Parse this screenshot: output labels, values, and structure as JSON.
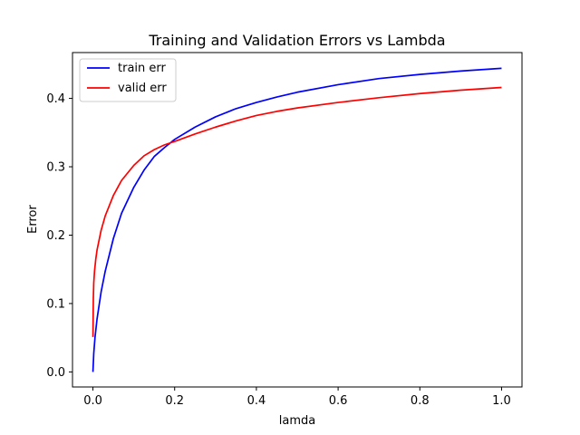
{
  "chart_data": {
    "type": "line",
    "title": "Training and Validation Errors vs Lambda",
    "xlabel": "lamda",
    "ylabel": "Error",
    "xlim": [
      -0.05,
      1.05
    ],
    "ylim": [
      -0.022,
      0.467
    ],
    "xticks": [
      0.0,
      0.2,
      0.4,
      0.6,
      0.8,
      1.0
    ],
    "xtick_labels": [
      "0.0",
      "0.2",
      "0.4",
      "0.6",
      "0.8",
      "1.0"
    ],
    "yticks": [
      0.0,
      0.1,
      0.2,
      0.3,
      0.4
    ],
    "ytick_labels": [
      "0.0",
      "0.1",
      "0.2",
      "0.3",
      "0.4"
    ],
    "grid": false,
    "legend_position": "top-left",
    "series": [
      {
        "name": "train err",
        "color": "#0000ff",
        "x": [
          0.0,
          0.002,
          0.005,
          0.01,
          0.02,
          0.03,
          0.05,
          0.07,
          0.1,
          0.125,
          0.15,
          0.175,
          0.2,
          0.25,
          0.3,
          0.35,
          0.4,
          0.45,
          0.5,
          0.6,
          0.7,
          0.8,
          0.9,
          1.0
        ],
        "values": [
          0.0,
          0.027,
          0.05,
          0.077,
          0.117,
          0.147,
          0.195,
          0.232,
          0.27,
          0.295,
          0.315,
          0.328,
          0.34,
          0.358,
          0.373,
          0.385,
          0.394,
          0.402,
          0.409,
          0.42,
          0.429,
          0.435,
          0.44,
          0.444
        ]
      },
      {
        "name": "valid err",
        "color": "#ff0000",
        "x": [
          0.0,
          0.001,
          0.002,
          0.004,
          0.007,
          0.01,
          0.02,
          0.03,
          0.05,
          0.07,
          0.1,
          0.125,
          0.15,
          0.175,
          0.2,
          0.25,
          0.3,
          0.35,
          0.4,
          0.45,
          0.5,
          0.6,
          0.7,
          0.8,
          0.9,
          1.0
        ],
        "values": [
          0.051,
          0.108,
          0.13,
          0.148,
          0.165,
          0.178,
          0.207,
          0.228,
          0.258,
          0.28,
          0.302,
          0.316,
          0.325,
          0.332,
          0.337,
          0.348,
          0.358,
          0.367,
          0.375,
          0.381,
          0.386,
          0.394,
          0.401,
          0.407,
          0.412,
          0.416
        ]
      }
    ]
  }
}
